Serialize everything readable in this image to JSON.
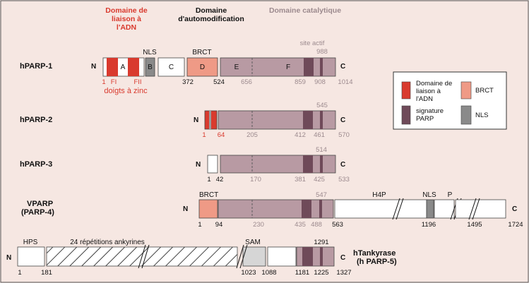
{
  "headers": {
    "dna_binding": [
      "Domaine de",
      "liaison à",
      "l'ADN"
    ],
    "automod": [
      "Domaine",
      "d'automodification"
    ],
    "catalytic": "Domaine catalytique"
  },
  "colors": {
    "background": "#f6e7e2",
    "red": "#d93a2e",
    "salmon": "#ef9a86",
    "catalytic": "#b89aa3",
    "signature": "#6f4a59",
    "nls": "#8a8a8a",
    "grey_text": "#9c8a8e",
    "dark": "#111111"
  },
  "hparp1": {
    "name": "hPARP-1",
    "n": "N",
    "c": "C",
    "domains": [
      "A",
      "B",
      "C",
      "D",
      "E",
      "F"
    ],
    "nls": "NLS",
    "brct": "BRCT",
    "site_actif": "site actif",
    "site_pos": "988",
    "fi": "FI",
    "fii": "FII",
    "zinc": "doigts à zinc",
    "positions": [
      "1",
      "372",
      "524",
      "656",
      "859",
      "908",
      "1014"
    ]
  },
  "hparp2": {
    "name": "hPARP-2",
    "n": "N",
    "c": "C",
    "top": "545",
    "positions": [
      "1",
      "64",
      "205",
      "412",
      "461",
      "570"
    ]
  },
  "hparp3": {
    "name": "hPARP-3",
    "n": "N",
    "c": "C",
    "top": "514",
    "positions": [
      "1",
      "42",
      "170",
      "381",
      "425",
      "533"
    ]
  },
  "vparp": {
    "name": [
      "VPARP",
      "(PARP-4)"
    ],
    "n": "N",
    "c": "C",
    "brct": "BRCT",
    "top": "547",
    "h4p": "H4P",
    "nls": "NLS",
    "p": "P",
    "positions": [
      "1",
      "94",
      "230",
      "435",
      "488",
      "563",
      "1196",
      "1495",
      "1724"
    ]
  },
  "tankyrase": {
    "name": [
      "hTankyrase",
      "(h PARP-5)"
    ],
    "n": "N",
    "c": "C",
    "hps": "HPS",
    "ankyrin": "24 répétitions ankyrines",
    "sam": "SAM",
    "top": "1291",
    "positions": [
      "1",
      "181",
      "1023",
      "1088",
      "1181",
      "1225",
      "1327"
    ]
  },
  "legend": {
    "dna": [
      "Domaine de",
      "liaison à",
      "l'ADN"
    ],
    "brct": "BRCT",
    "signature": [
      "signature",
      "PARP"
    ],
    "nls": "NLS"
  }
}
